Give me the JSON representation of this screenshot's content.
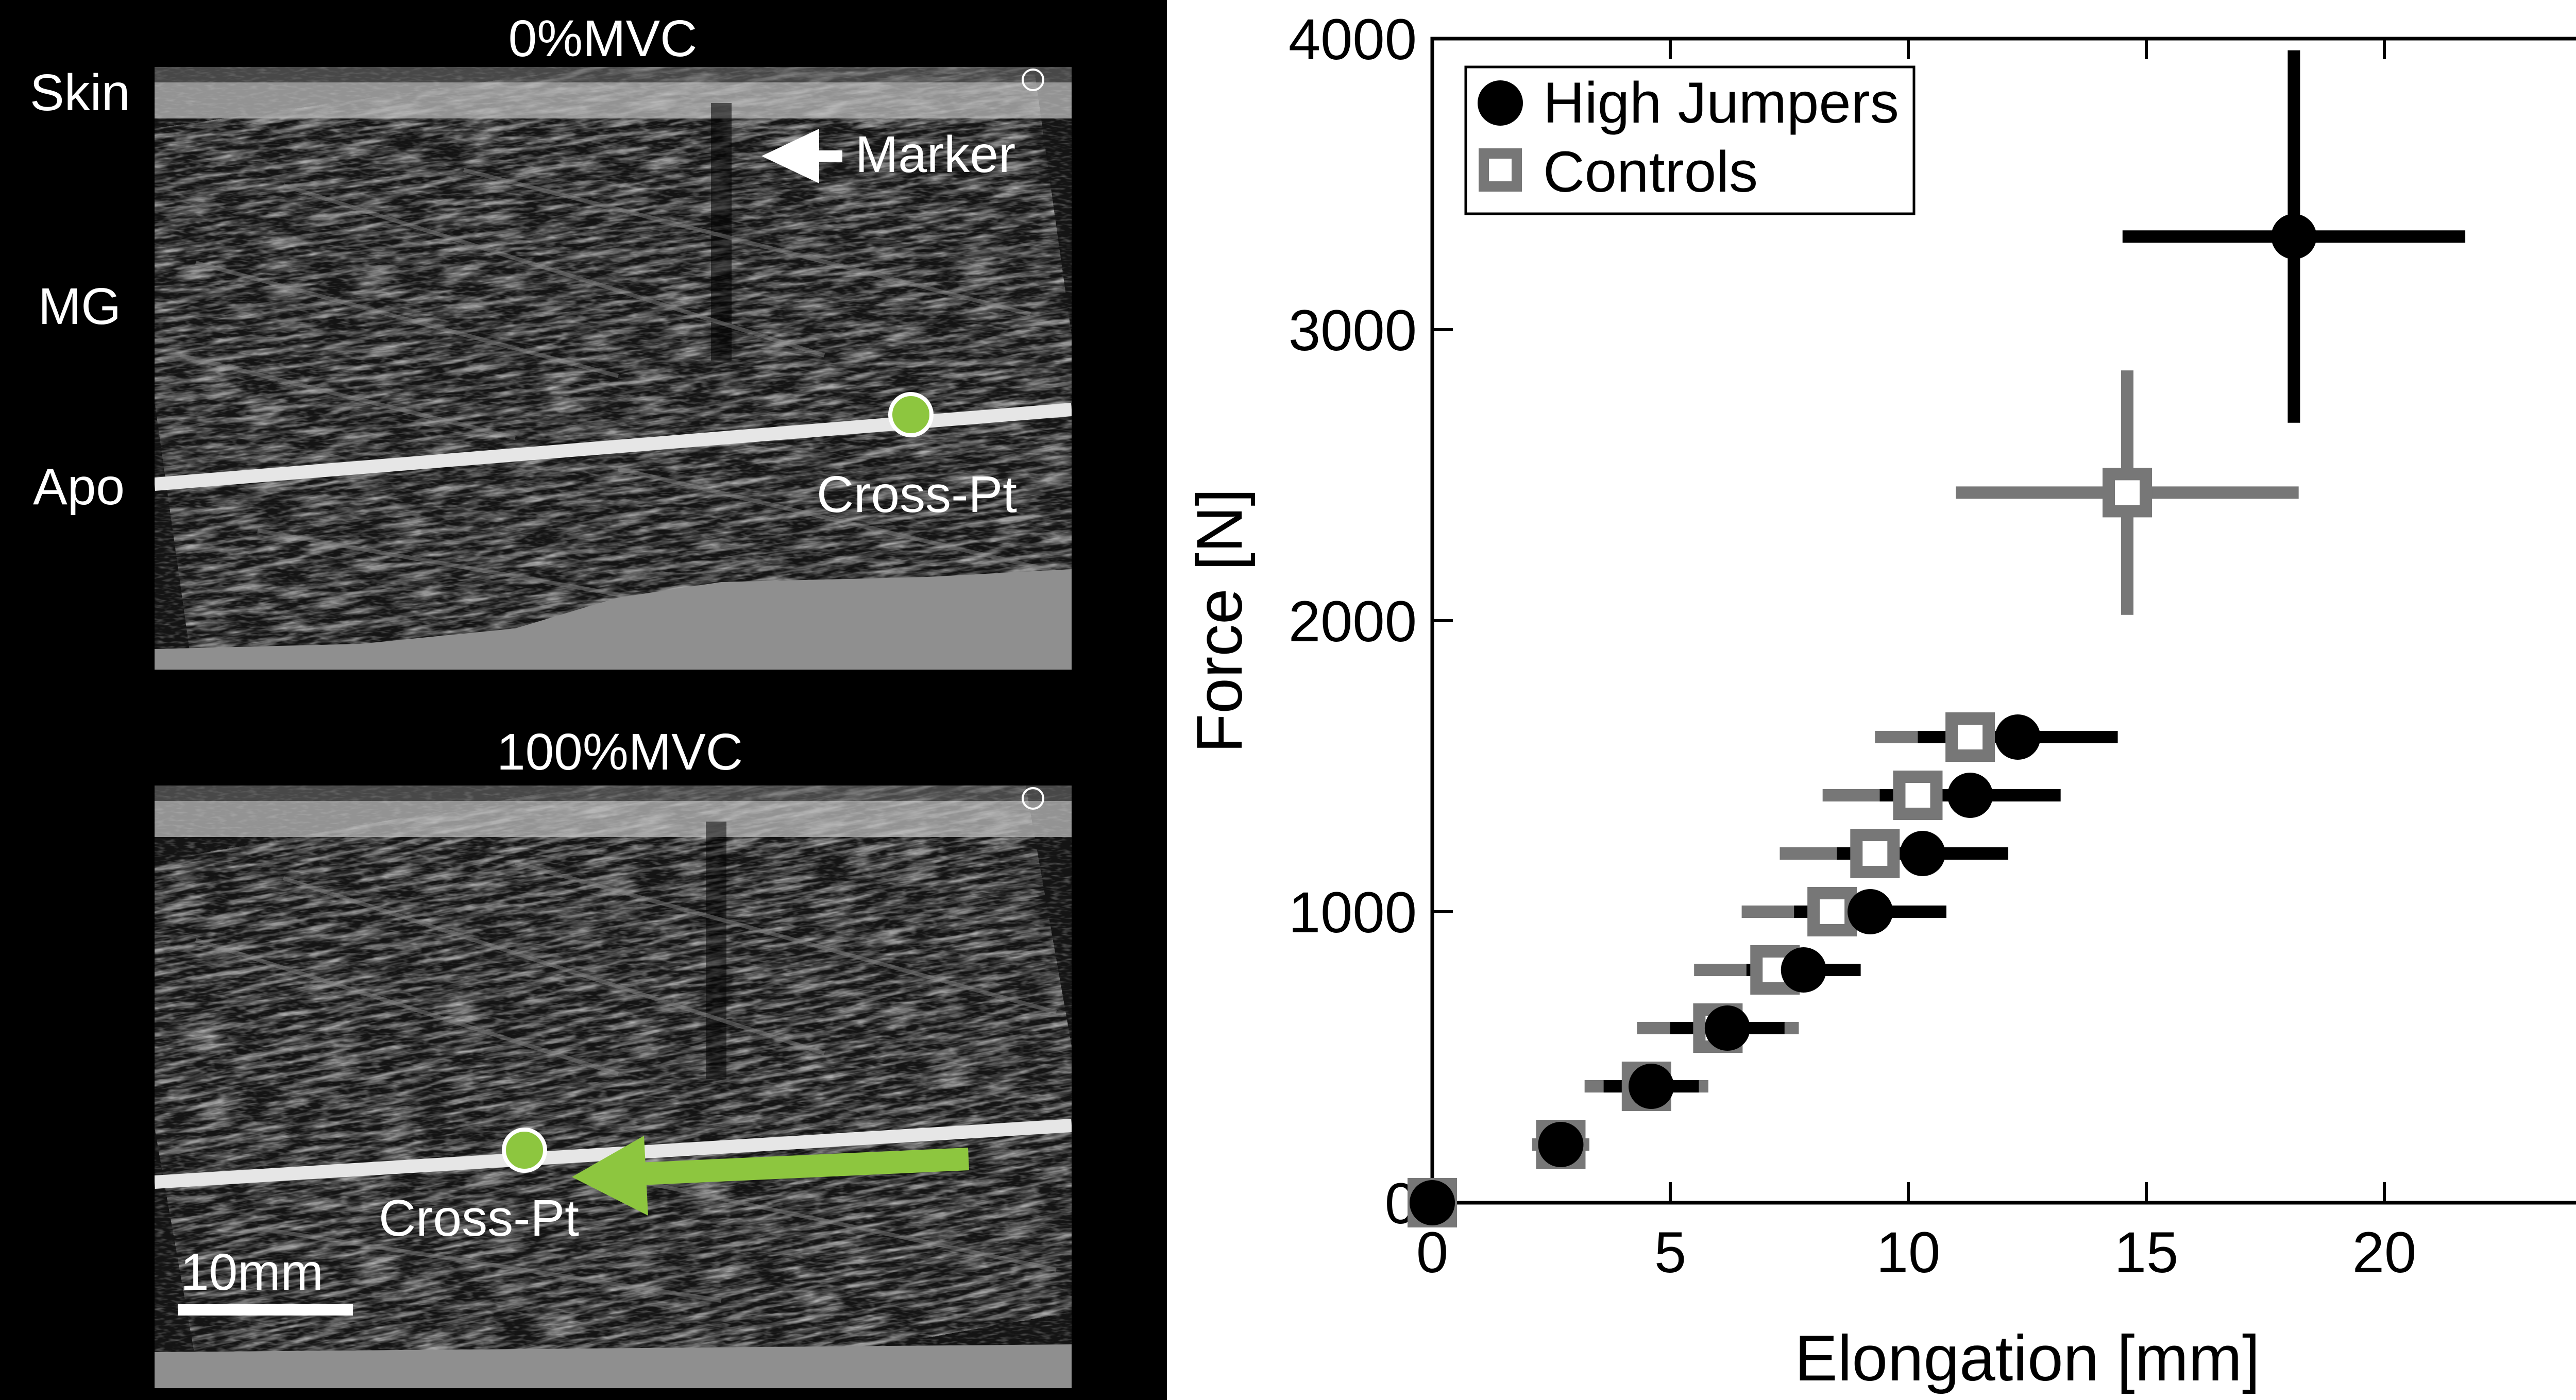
{
  "left_panel": {
    "top_image": {
      "title": "0%MVC",
      "labels": {
        "skin": "Skin",
        "mg": "MG",
        "apo": "Apo",
        "marker": "Marker",
        "cross_pt": "Cross-Pt"
      }
    },
    "bottom_image": {
      "title": "100%MVC",
      "labels": {
        "cross_pt": "Cross-Pt",
        "scale_bar": "10mm"
      }
    },
    "colors": {
      "marker_point": "#8dc63f",
      "arrow": "#8dc63f"
    },
    "icons": [
      "arrow-left-icon",
      "green-dot-icon",
      "green-arrow-icon",
      "h-mark-icon"
    ]
  },
  "chart_data": {
    "type": "scatter",
    "xlabel": "Elongation [mm]",
    "ylabel": "Force [N]",
    "xlim": [
      0,
      25
    ],
    "ylim": [
      0,
      4000
    ],
    "xticks": [
      0,
      5,
      10,
      15,
      20,
      25
    ],
    "yticks": [
      0,
      1000,
      2000,
      3000,
      4000
    ],
    "legend_position": "top-left",
    "grid": false,
    "series": [
      {
        "name": "Controls",
        "marker": "open-square",
        "color": "#777777",
        "points": [
          {
            "x": 0.0,
            "y": 0,
            "xerr": 0.0,
            "yerr": 0
          },
          {
            "x": 2.7,
            "y": 200,
            "xerr": 0.6,
            "yerr": 0
          },
          {
            "x": 4.5,
            "y": 400,
            "xerr": 1.3,
            "yerr": 0
          },
          {
            "x": 6.0,
            "y": 600,
            "xerr": 1.7,
            "yerr": 0
          },
          {
            "x": 7.2,
            "y": 800,
            "xerr": 1.7,
            "yerr": 0
          },
          {
            "x": 8.4,
            "y": 1000,
            "xerr": 1.9,
            "yerr": 0
          },
          {
            "x": 9.3,
            "y": 1200,
            "xerr": 2.0,
            "yerr": 0
          },
          {
            "x": 10.2,
            "y": 1400,
            "xerr": 2.0,
            "yerr": 0
          },
          {
            "x": 11.3,
            "y": 1600,
            "xerr": 2.0,
            "yerr": 0
          },
          {
            "x": 14.6,
            "y": 2440,
            "xerr": 3.6,
            "yerr": 420
          }
        ]
      },
      {
        "name": "High Jumpers",
        "marker": "filled-circle",
        "color": "#000000",
        "points": [
          {
            "x": 0.0,
            "y": 0,
            "xerr": 0.0,
            "yerr": 0
          },
          {
            "x": 2.7,
            "y": 200,
            "xerr": 0.0,
            "yerr": 0
          },
          {
            "x": 4.6,
            "y": 400,
            "xerr": 1.0,
            "yerr": 0
          },
          {
            "x": 6.2,
            "y": 600,
            "xerr": 1.2,
            "yerr": 0
          },
          {
            "x": 7.8,
            "y": 800,
            "xerr": 1.2,
            "yerr": 0
          },
          {
            "x": 9.2,
            "y": 1000,
            "xerr": 1.6,
            "yerr": 0
          },
          {
            "x": 10.3,
            "y": 1200,
            "xerr": 1.8,
            "yerr": 0
          },
          {
            "x": 11.3,
            "y": 1400,
            "xerr": 1.9,
            "yerr": 0
          },
          {
            "x": 12.3,
            "y": 1600,
            "xerr": 2.1,
            "yerr": 0
          },
          {
            "x": 18.1,
            "y": 3320,
            "xerr": 3.6,
            "yerr": 640
          }
        ]
      }
    ]
  }
}
